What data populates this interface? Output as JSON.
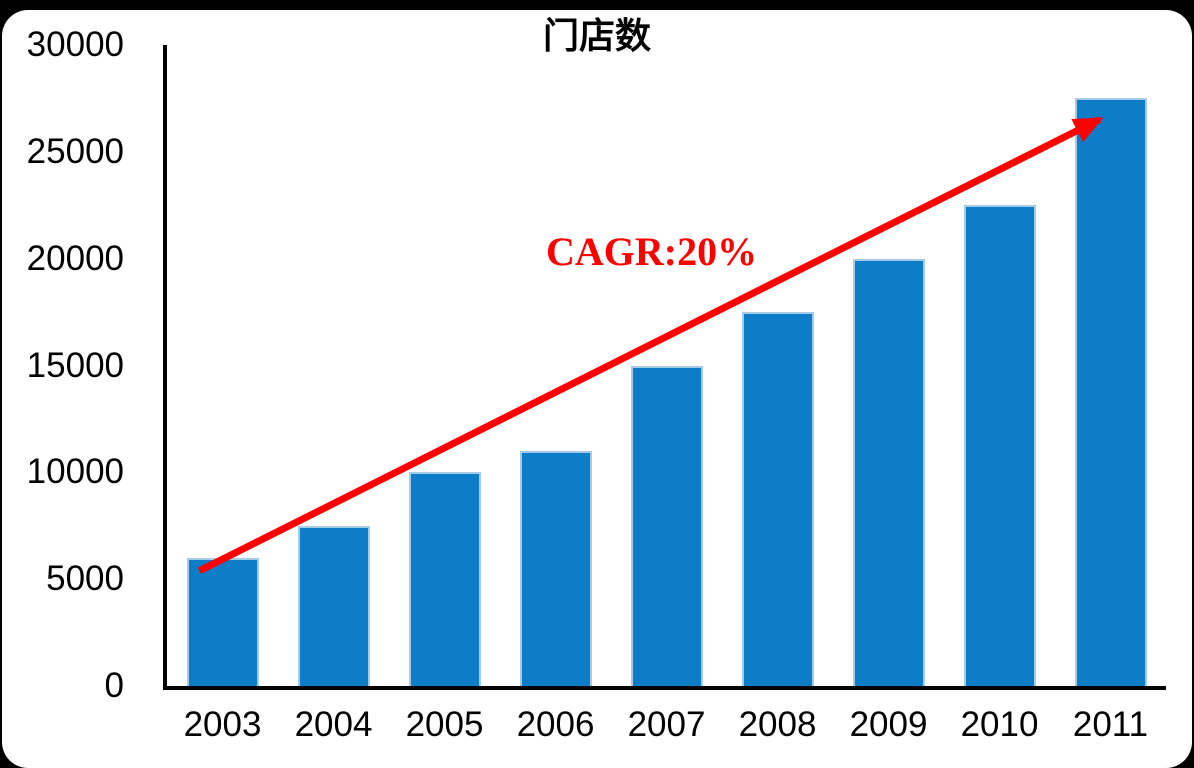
{
  "chart_data": {
    "type": "bar",
    "title": "门店数",
    "categories": [
      "2003",
      "2004",
      "2005",
      "2006",
      "2007",
      "2008",
      "2009",
      "2010",
      "2011"
    ],
    "values": [
      6000,
      7500,
      10000,
      11000,
      15000,
      17500,
      20000,
      22500,
      27500
    ],
    "xlabel": "",
    "ylabel": "",
    "ylim": [
      0,
      30000
    ],
    "yticks": [
      0,
      5000,
      10000,
      15000,
      20000,
      25000,
      30000
    ],
    "grid": false,
    "legend": "none",
    "annotation": {
      "text": "CAGR:20%",
      "color": "#FF0000"
    },
    "trend_arrow": {
      "from_category": "2003",
      "to_category": "2011",
      "color": "#FF0000"
    },
    "colors": {
      "bar": "#0D7DC7",
      "bar_border": "#A5CBE9",
      "axis": "#000000",
      "text": "#000000",
      "frame_background": "#000000",
      "plot_background": "#FFFFFF"
    }
  }
}
